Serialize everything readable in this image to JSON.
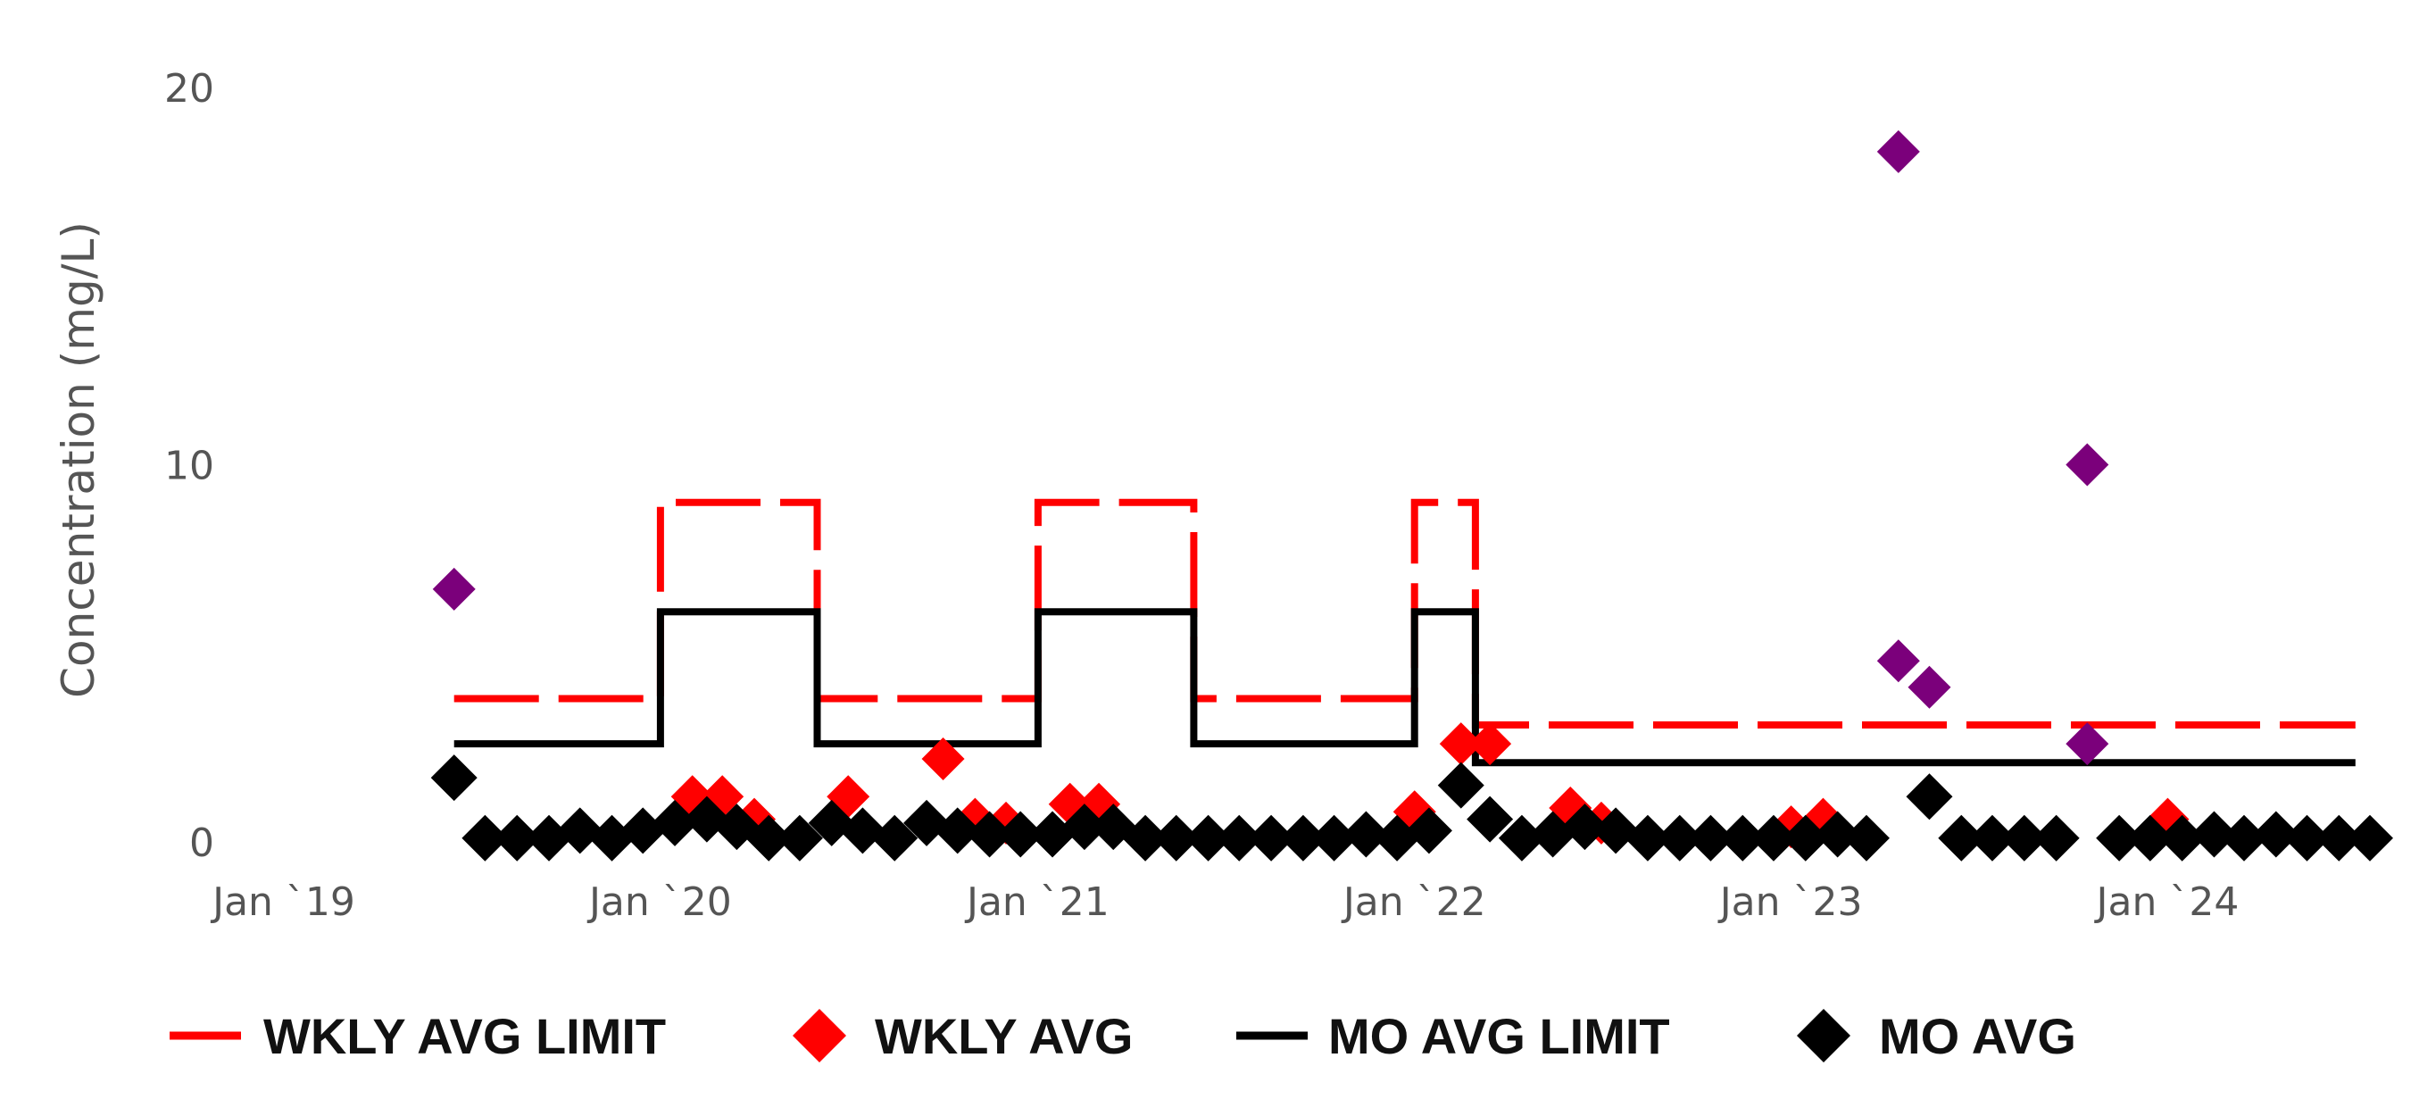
{
  "chart_data": {
    "type": "scatter",
    "ylabel": "Concentration (mg/L)",
    "xlabel": "",
    "ylim": [
      0,
      20
    ],
    "y_ticks": [
      "0",
      "10",
      "20"
    ],
    "xlim": [
      "2019-01-01",
      "2024-07-15"
    ],
    "x_ticks": [
      {
        "date": "2019-01-01",
        "label": "Jan `19"
      },
      {
        "date": "2020-01-01",
        "label": "Jan `20"
      },
      {
        "date": "2021-01-01",
        "label": "Jan `21"
      },
      {
        "date": "2022-01-01",
        "label": "Jan `22"
      },
      {
        "date": "2023-01-01",
        "label": "Jan `23"
      },
      {
        "date": "2024-01-01",
        "label": "Jan `24"
      }
    ],
    "grid": false,
    "legend_position": "bottom",
    "colors": {
      "wkly_avg_limit": "#ff0000",
      "wkly_avg": "#ff0000",
      "mo_avg_limit": "#000000",
      "mo_avg": "#000000",
      "exceedance": "#7b007b"
    },
    "series": [
      {
        "name": "WKLY AVG LIMIT",
        "style": "dashed-step-line",
        "points": [
          {
            "x": "2019-06-15",
            "y": 3.8
          },
          {
            "x": "2020-01-01",
            "y": 3.8
          },
          {
            "x": "2020-01-01",
            "y": 9.0
          },
          {
            "x": "2020-06-01",
            "y": 9.0
          },
          {
            "x": "2020-06-01",
            "y": 3.8
          },
          {
            "x": "2021-01-01",
            "y": 3.8
          },
          {
            "x": "2021-01-01",
            "y": 9.0
          },
          {
            "x": "2021-06-01",
            "y": 9.0
          },
          {
            "x": "2021-06-01",
            "y": 3.8
          },
          {
            "x": "2022-01-01",
            "y": 3.8
          },
          {
            "x": "2022-01-01",
            "y": 9.0
          },
          {
            "x": "2022-03-01",
            "y": 9.0
          },
          {
            "x": "2022-03-01",
            "y": 3.1
          },
          {
            "x": "2024-07-01",
            "y": 3.1
          }
        ]
      },
      {
        "name": "WKLY AVG",
        "style": "diamond",
        "points": [
          {
            "x": "2020-02-01",
            "y": 1.2
          },
          {
            "x": "2020-03-01",
            "y": 1.2
          },
          {
            "x": "2020-04-01",
            "y": 0.6
          },
          {
            "x": "2020-07-01",
            "y": 1.2
          },
          {
            "x": "2020-10-01",
            "y": 2.2
          },
          {
            "x": "2020-11-01",
            "y": 0.6
          },
          {
            "x": "2020-12-01",
            "y": 0.5
          },
          {
            "x": "2021-02-01",
            "y": 1.0
          },
          {
            "x": "2021-03-01",
            "y": 1.0
          },
          {
            "x": "2022-01-01",
            "y": 0.8
          },
          {
            "x": "2022-02-15",
            "y": 2.6
          },
          {
            "x": "2022-03-15",
            "y": 2.6
          },
          {
            "x": "2022-06-01",
            "y": 0.9
          },
          {
            "x": "2022-07-01",
            "y": 0.5
          },
          {
            "x": "2023-01-01",
            "y": 0.4
          },
          {
            "x": "2023-02-01",
            "y": 0.6
          },
          {
            "x": "2024-01-01",
            "y": 0.6
          }
        ]
      },
      {
        "name": "MO AVG LIMIT",
        "style": "solid-step-line",
        "points": [
          {
            "x": "2019-06-15",
            "y": 2.6
          },
          {
            "x": "2020-01-01",
            "y": 2.6
          },
          {
            "x": "2020-01-01",
            "y": 6.1
          },
          {
            "x": "2020-06-01",
            "y": 6.1
          },
          {
            "x": "2020-06-01",
            "y": 2.6
          },
          {
            "x": "2021-01-01",
            "y": 2.6
          },
          {
            "x": "2021-01-01",
            "y": 6.1
          },
          {
            "x": "2021-06-01",
            "y": 6.1
          },
          {
            "x": "2021-06-01",
            "y": 2.6
          },
          {
            "x": "2022-01-01",
            "y": 2.6
          },
          {
            "x": "2022-01-01",
            "y": 6.1
          },
          {
            "x": "2022-03-01",
            "y": 6.1
          },
          {
            "x": "2022-03-01",
            "y": 2.1
          },
          {
            "x": "2024-07-01",
            "y": 2.1
          }
        ]
      },
      {
        "name": "MO AVG",
        "style": "diamond",
        "points": [
          {
            "x": "2019-06-15",
            "y": 1.7
          },
          {
            "x": "2019-07-15",
            "y": 0.1
          },
          {
            "x": "2019-08-15",
            "y": 0.1
          },
          {
            "x": "2019-09-15",
            "y": 0.1
          },
          {
            "x": "2019-10-15",
            "y": 0.3
          },
          {
            "x": "2019-11-15",
            "y": 0.1
          },
          {
            "x": "2019-12-15",
            "y": 0.3
          },
          {
            "x": "2020-01-15",
            "y": 0.5
          },
          {
            "x": "2020-02-15",
            "y": 0.6
          },
          {
            "x": "2020-03-15",
            "y": 0.4
          },
          {
            "x": "2020-04-15",
            "y": 0.1
          },
          {
            "x": "2020-05-15",
            "y": 0.1
          },
          {
            "x": "2020-06-15",
            "y": 0.5
          },
          {
            "x": "2020-07-15",
            "y": 0.3
          },
          {
            "x": "2020-08-15",
            "y": 0.1
          },
          {
            "x": "2020-09-15",
            "y": 0.5
          },
          {
            "x": "2020-10-15",
            "y": 0.3
          },
          {
            "x": "2020-11-15",
            "y": 0.2
          },
          {
            "x": "2020-12-15",
            "y": 0.2
          },
          {
            "x": "2021-01-15",
            "y": 0.2
          },
          {
            "x": "2021-02-15",
            "y": 0.4
          },
          {
            "x": "2021-03-15",
            "y": 0.4
          },
          {
            "x": "2021-04-15",
            "y": 0.1
          },
          {
            "x": "2021-05-15",
            "y": 0.1
          },
          {
            "x": "2021-06-15",
            "y": 0.1
          },
          {
            "x": "2021-07-15",
            "y": 0.1
          },
          {
            "x": "2021-08-15",
            "y": 0.1
          },
          {
            "x": "2021-09-15",
            "y": 0.1
          },
          {
            "x": "2021-10-15",
            "y": 0.1
          },
          {
            "x": "2021-11-15",
            "y": 0.2
          },
          {
            "x": "2021-12-15",
            "y": 0.1
          },
          {
            "x": "2022-01-15",
            "y": 0.3
          },
          {
            "x": "2022-02-15",
            "y": 1.5
          },
          {
            "x": "2022-03-15",
            "y": 0.6
          },
          {
            "x": "2022-04-15",
            "y": 0.1
          },
          {
            "x": "2022-05-15",
            "y": 0.2
          },
          {
            "x": "2022-06-15",
            "y": 0.4
          },
          {
            "x": "2022-07-15",
            "y": 0.3
          },
          {
            "x": "2022-08-15",
            "y": 0.1
          },
          {
            "x": "2022-09-15",
            "y": 0.1
          },
          {
            "x": "2022-10-15",
            "y": 0.1
          },
          {
            "x": "2022-11-15",
            "y": 0.1
          },
          {
            "x": "2022-12-15",
            "y": 0.1
          },
          {
            "x": "2023-01-15",
            "y": 0.1
          },
          {
            "x": "2023-02-15",
            "y": 0.2
          },
          {
            "x": "2023-03-15",
            "y": 0.1
          },
          {
            "x": "2023-05-15",
            "y": 1.2
          },
          {
            "x": "2023-06-15",
            "y": 0.1
          },
          {
            "x": "2023-07-15",
            "y": 0.1
          },
          {
            "x": "2023-08-15",
            "y": 0.1
          },
          {
            "x": "2023-09-15",
            "y": 0.1
          },
          {
            "x": "2023-11-15",
            "y": 0.1
          },
          {
            "x": "2023-12-15",
            "y": 0.1
          },
          {
            "x": "2024-01-15",
            "y": 0.1
          },
          {
            "x": "2024-02-15",
            "y": 0.2
          },
          {
            "x": "2024-03-15",
            "y": 0.1
          },
          {
            "x": "2024-04-15",
            "y": 0.2
          },
          {
            "x": "2024-05-15",
            "y": 0.1
          },
          {
            "x": "2024-06-15",
            "y": 0.1
          },
          {
            "x": "2024-07-15",
            "y": 0.1
          }
        ]
      },
      {
        "style": "diamond",
        "color": "#7b007b",
        "points": [
          {
            "x": "2019-06-15",
            "y": 6.7
          },
          {
            "x": "2023-04-15",
            "y": 18.3
          },
          {
            "x": "2023-04-15",
            "y": 4.8
          },
          {
            "x": "2023-05-15",
            "y": 4.1
          },
          {
            "x": "2023-10-15",
            "y": 10.0
          },
          {
            "x": "2023-10-15",
            "y": 2.6
          }
        ]
      }
    ],
    "legend": [
      {
        "label": "WKLY AVG LIMIT",
        "symbol": "line",
        "color": "#ff0000"
      },
      {
        "label": "WKLY AVG",
        "symbol": "diamond",
        "color": "#ff0000"
      },
      {
        "label": "MO AVG LIMIT",
        "symbol": "line",
        "color": "#000000"
      },
      {
        "label": "MO AVG",
        "symbol": "diamond",
        "color": "#000000"
      }
    ]
  }
}
